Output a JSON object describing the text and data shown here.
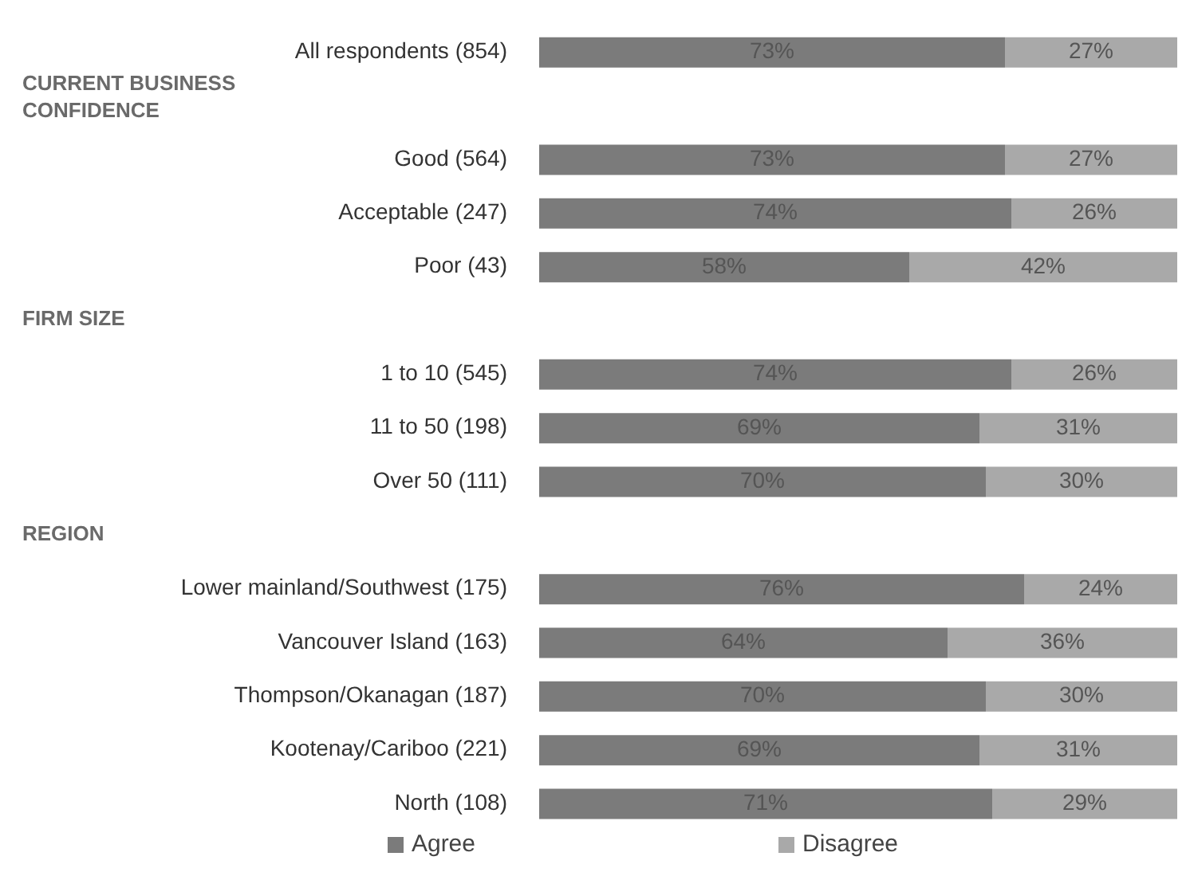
{
  "chart_data": {
    "type": "bar",
    "orientation": "horizontal",
    "stacked": true,
    "categories": [
      "All respondents (854)",
      null,
      "Good (564)",
      "Acceptable (247)",
      "Poor (43)",
      null,
      "1 to 10 (545)",
      "11 to 50 (198)",
      "Over 50 (111)",
      null,
      "Lower mainland/Southwest (175)",
      "Vancouver Island (163)",
      "Thompson/Okanagan (187)",
      "Kootenay/Cariboo (221)",
      "North (108)"
    ],
    "annotations": [
      "CURRENT BUSINESS CONFIDENCE",
      "FIRM SIZE",
      "REGION"
    ],
    "series": [
      {
        "name": "Agree",
        "color": "#7b7b7b",
        "values": [
          73,
          null,
          73,
          74,
          58,
          null,
          74,
          69,
          70,
          null,
          76,
          64,
          70,
          69,
          71
        ],
        "value_labels": [
          "73%",
          null,
          "73%",
          "74%",
          "58%",
          null,
          "74%",
          "69%",
          "70%",
          null,
          "76%",
          "64%",
          "70%",
          "69%",
          "71%"
        ]
      },
      {
        "name": "Disagree",
        "color": "#a9a9a9",
        "values": [
          27,
          null,
          27,
          26,
          42,
          null,
          26,
          31,
          30,
          null,
          24,
          36,
          30,
          31,
          29
        ],
        "value_labels": [
          "27%",
          null,
          "27%",
          "26%",
          "42%",
          null,
          "26%",
          "31%",
          "30%",
          null,
          "24%",
          "36%",
          "30%",
          "31%",
          "29%"
        ]
      }
    ],
    "legend": "bottom"
  }
}
